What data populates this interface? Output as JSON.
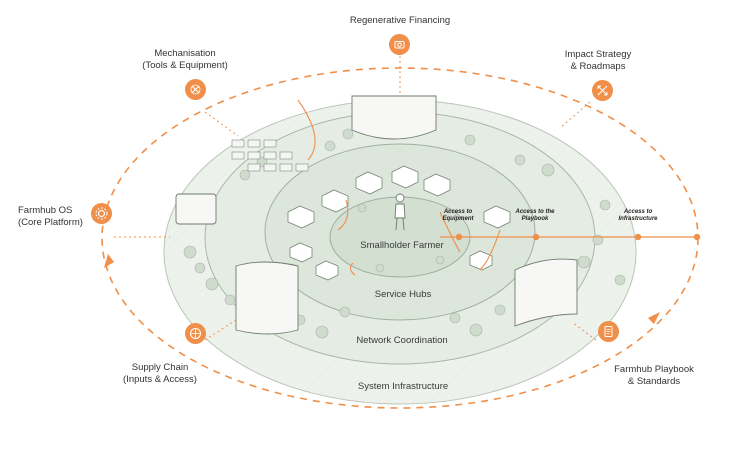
{
  "colors": {
    "accent": "#ef8f4a",
    "ring_outer": "#eef2ec",
    "ring_mid": "#e3ebe2",
    "ring_inner": "#d7e3d6",
    "line": "#b9c4b8"
  },
  "external_nodes": [
    {
      "key": "regenerative_financing",
      "line1": "Regenerative Financing",
      "line2": "",
      "icon": "camera-icon"
    },
    {
      "key": "mechanisation",
      "line1": "Mechanisation",
      "line2": "(Tools & Equipment)",
      "icon": "tools-icon"
    },
    {
      "key": "impact_strategy",
      "line1": "Impact Strategy",
      "line2": "& Roadmaps",
      "icon": "expand-arrows-icon"
    },
    {
      "key": "farmhub_os",
      "line1": "Farmhub OS",
      "line2": "(Core Platform)",
      "icon": "gear-icon"
    },
    {
      "key": "supply_chain",
      "line1": "Supply Chain",
      "line2": "(Inputs & Access)",
      "icon": "globe-icon"
    },
    {
      "key": "farmhub_playbook",
      "line1": "Farmhub Playbook",
      "line2": "& Standards",
      "icon": "document-icon"
    }
  ],
  "rings": {
    "center": "Smallholder Farmer",
    "service_hubs": "Service Hubs",
    "network_coordination": "Network Coordination",
    "system_infrastructure": "System Infrastructure"
  },
  "access_labels": [
    {
      "key": "equipment",
      "line1": "Access to",
      "line2": "Equipment"
    },
    {
      "key": "playbook",
      "line1": "Access to the",
      "line2": "Playbook"
    },
    {
      "key": "infrastructure",
      "line1": "Access to",
      "line2": "Infrastructure"
    }
  ]
}
